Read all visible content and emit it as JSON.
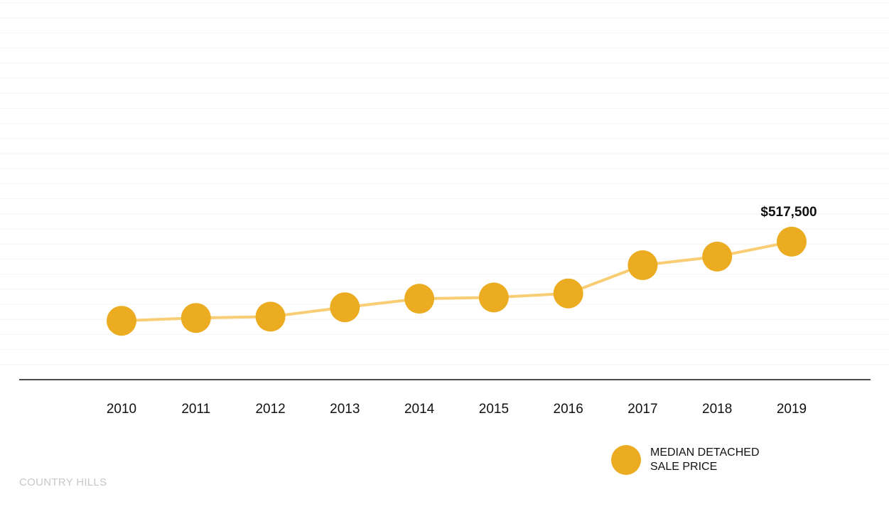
{
  "footer": {
    "location": "COUNTRY HILLS"
  },
  "legend": {
    "label": "MEDIAN DETACHED SALE PRICE"
  },
  "colors": {
    "marker": "#EBAC21",
    "line": "#F9CD73",
    "axis": "#111111",
    "grid": "#F4F4F4"
  },
  "chart_data": {
    "type": "line",
    "title": "",
    "xlabel": "",
    "ylabel": "",
    "categories": [
      "2010",
      "2011",
      "2012",
      "2013",
      "2014",
      "2015",
      "2016",
      "2017",
      "2018",
      "2019"
    ],
    "series": [
      {
        "name": "MEDIAN DETACHED SALE PRICE",
        "values": [
          324000,
          331000,
          334000,
          357000,
          378000,
          381000,
          391000,
          460000,
          481000,
          517500
        ]
      }
    ],
    "data_labels": [
      {
        "category": "2019",
        "text": "$517,500"
      }
    ],
    "ylim": [
      180000,
      1100000
    ],
    "grid": true,
    "legend_position": "bottom-right"
  }
}
